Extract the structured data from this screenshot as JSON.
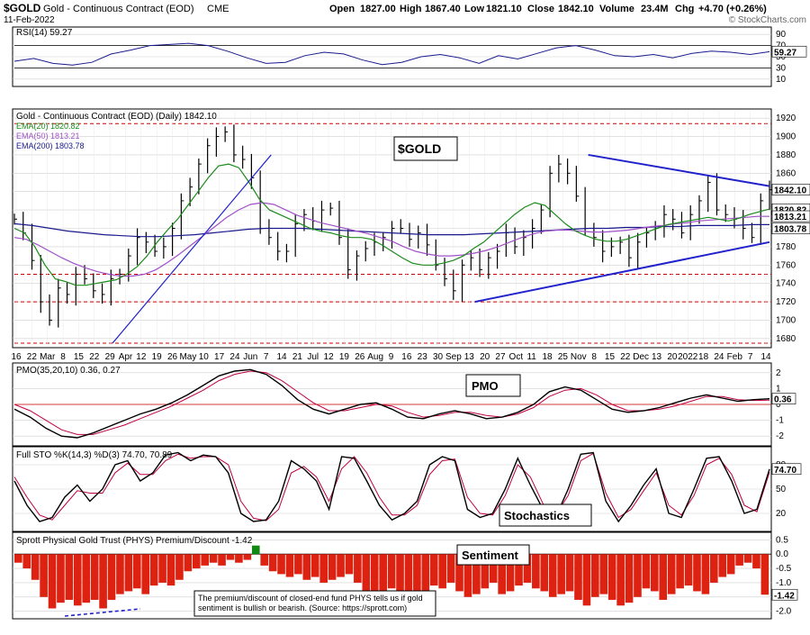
{
  "header": {
    "symbol": "$GOLD",
    "name": "Gold - Continuous Contract (EOD)",
    "exchange": "CME",
    "date": "11-Feb-2022",
    "open_label": "Open",
    "open": "1827.00",
    "high_label": "High",
    "high": "1867.40",
    "low_label": "Low",
    "low": "1821.10",
    "close_label": "Close",
    "close": "1842.10",
    "volume_label": "Volume",
    "volume": "23.4M",
    "chg_label": "Chg",
    "chg": "+4.70 (+0.26%)",
    "watermark": "© StockCharts.com"
  },
  "colors": {
    "price_bar": "#000000",
    "ema20": "#1a8a1a",
    "ema50": "#a050c8",
    "ema200": "#1a1a8c",
    "trendline": "#2222cc",
    "resistance": "#cc0000",
    "pmo_line": "#000000",
    "pmo_signal": "#c00040",
    "sto_k": "#000000",
    "sto_d": "#c00040",
    "sentiment_neg": "#dd2211",
    "sentiment_pos": "#118811",
    "rsi_line": "#1a1a8c"
  },
  "chart_data": [
    {
      "type": "line",
      "panel": "RSI",
      "title": "RSI(14) 59.27",
      "last_value": "59.27",
      "y_ticks": [
        "90",
        "70",
        "50",
        "30",
        "10"
      ],
      "ylim": [
        0,
        100
      ],
      "series": [
        {
          "values": [
            42,
            47,
            38,
            35,
            40,
            55,
            62,
            70,
            72,
            74,
            70,
            60,
            48,
            38,
            40,
            52,
            58,
            55,
            44,
            36,
            40,
            50,
            54,
            48,
            38,
            52,
            46,
            56,
            66,
            70,
            62,
            52,
            50,
            54,
            48,
            56,
            60,
            58,
            54,
            59
          ]
        }
      ]
    },
    {
      "type": "line",
      "panel": "price",
      "title": "Gold - Continuous Contract (EOD) (Daily) 1842.10",
      "annotation": "$GOLD",
      "legend": [
        "EMA(20) 1820.82",
        "EMA(50) 1813.21",
        "EMA(200) 1803.78"
      ],
      "price_labels": [
        "1842.10",
        "1820.82",
        "1813.21",
        "1803.78"
      ],
      "y_ticks": [
        "1920",
        "1900",
        "1880",
        "1860",
        "1840",
        "1820",
        "1800",
        "1780",
        "1760",
        "1740",
        "1720",
        "1700",
        "1680"
      ],
      "ylim": [
        1672,
        1928
      ],
      "x_labels": [
        "16",
        "22",
        "Mar",
        "8",
        "15",
        "22",
        "29",
        "Apr",
        "12",
        "19",
        "26",
        "May",
        "10",
        "17",
        "24",
        "Jun",
        "7",
        "14",
        "21",
        "Jul",
        "12",
        "19",
        "26",
        "Aug",
        "9",
        "16",
        "23",
        "30",
        "Sep",
        "13",
        "20",
        "27",
        "Oct",
        "11",
        "18",
        "25",
        "Nov",
        "8",
        "15",
        "22",
        "Dec",
        "13",
        "20",
        "2022",
        "18",
        "24",
        "Feb",
        "7",
        "14"
      ],
      "close": [
        1810,
        1795,
        1765,
        1720,
        1700,
        1735,
        1728,
        1750,
        1745,
        1732,
        1728,
        1745,
        1750,
        1770,
        1790,
        1785,
        1775,
        1780,
        1800,
        1830,
        1845,
        1870,
        1890,
        1900,
        1905,
        1880,
        1875,
        1855,
        1800,
        1790,
        1775,
        1775,
        1805,
        1815,
        1808,
        1820,
        1822,
        1790,
        1755,
        1770,
        1778,
        1785,
        1790,
        1800,
        1800,
        1788,
        1795,
        1782,
        1760,
        1745,
        1732,
        1760,
        1768,
        1755,
        1768,
        1775,
        1795,
        1780,
        1790,
        1800,
        1820,
        1860,
        1870,
        1860,
        1835,
        1800,
        1790,
        1775,
        1780,
        1785,
        1768,
        1785,
        1795,
        1800,
        1815,
        1810,
        1795,
        1815,
        1830,
        1850,
        1820,
        1815,
        1810,
        1800,
        1790,
        1830,
        1842
      ],
      "ema20_values": [
        1800,
        1795,
        1780,
        1760,
        1745,
        1742,
        1738,
        1738,
        1740,
        1742,
        1744,
        1750,
        1758,
        1770,
        1785,
        1798,
        1810,
        1825,
        1840,
        1855,
        1868,
        1870,
        1866,
        1850,
        1832,
        1820,
        1815,
        1810,
        1805,
        1800,
        1797,
        1795,
        1792,
        1790,
        1790,
        1788,
        1782,
        1775,
        1768,
        1762,
        1760,
        1760,
        1762,
        1765,
        1770,
        1778,
        1785,
        1795,
        1805,
        1815,
        1823,
        1828,
        1825,
        1815,
        1805,
        1797,
        1792,
        1788,
        1786,
        1786,
        1788,
        1792,
        1796,
        1800,
        1804,
        1806,
        1808,
        1810,
        1812,
        1810,
        1808,
        1811,
        1815,
        1818,
        1821
      ],
      "ema50_values": [
        1790,
        1788,
        1782,
        1775,
        1768,
        1762,
        1757,
        1753,
        1750,
        1748,
        1748,
        1750,
        1755,
        1763,
        1772,
        1782,
        1792,
        1802,
        1812,
        1820,
        1826,
        1828,
        1826,
        1820,
        1814,
        1810,
        1806,
        1803,
        1800,
        1797,
        1794,
        1790,
        1786,
        1780,
        1775,
        1772,
        1770,
        1770,
        1771,
        1773,
        1776,
        1780,
        1785,
        1790,
        1794,
        1797,
        1798,
        1798,
        1797,
        1796,
        1796,
        1797,
        1798,
        1800,
        1802,
        1803,
        1805,
        1806,
        1808,
        1809,
        1810,
        1811,
        1812,
        1813,
        1813
      ],
      "ema200_values": [
        1805,
        1803,
        1800,
        1797,
        1795,
        1793,
        1792,
        1791,
        1791,
        1792,
        1793,
        1795,
        1797,
        1799,
        1800,
        1800,
        1800,
        1799,
        1798,
        1797,
        1796,
        1795,
        1794,
        1793,
        1793,
        1793,
        1794,
        1795,
        1796,
        1797,
        1798,
        1799,
        1800,
        1800,
        1801,
        1801,
        1802,
        1802,
        1803,
        1803,
        1803,
        1804,
        1804
      ],
      "resistance_levels": [
        1914,
        1750,
        1720,
        1675
      ],
      "trendlines": [
        {
          "label": "Apr rising",
          "from": [
            "Apr",
            1675
          ],
          "to": [
            "Jun",
            1880
          ]
        },
        {
          "label": "Nov falling",
          "from": [
            "Nov 15",
            1880
          ],
          "to": [
            "Feb 14",
            1846
          ]
        },
        {
          "label": "Oct rising",
          "from": [
            "Oct",
            1720
          ],
          "to": [
            "Feb 14",
            1785
          ]
        }
      ]
    },
    {
      "type": "line",
      "panel": "PMO",
      "title": "PMO(35,20,10) 0.36, 0.27",
      "annotation": "PMO",
      "last_value": "0.36",
      "y_ticks": [
        "2",
        "1",
        "0",
        "-1",
        "-2"
      ],
      "ylim": [
        -2.5,
        2.5
      ],
      "series": [
        {
          "name": "PMO",
          "values": [
            -0.3,
            -0.8,
            -1.5,
            -2.0,
            -2.1,
            -1.8,
            -1.4,
            -1.0,
            -0.6,
            -0.3,
            0.1,
            0.6,
            1.2,
            1.8,
            2.1,
            2.2,
            1.9,
            1.2,
            0.3,
            -0.3,
            -0.6,
            -0.3,
            0.0,
            0.1,
            -0.3,
            -0.8,
            -0.9,
            -0.6,
            -0.4,
            -0.6,
            -0.9,
            -0.8,
            -0.5,
            0.0,
            0.8,
            1.1,
            0.9,
            0.3,
            -0.3,
            -0.5,
            -0.4,
            -0.2,
            0.1,
            0.4,
            0.6,
            0.4,
            0.2,
            0.3,
            0.36
          ]
        },
        {
          "name": "Signal",
          "values": [
            0.0,
            -0.4,
            -1.0,
            -1.6,
            -1.9,
            -1.9,
            -1.6,
            -1.3,
            -0.9,
            -0.5,
            -0.1,
            0.4,
            0.9,
            1.5,
            1.9,
            2.1,
            2.0,
            1.5,
            0.8,
            0.1,
            -0.4,
            -0.4,
            -0.2,
            0.0,
            -0.1,
            -0.5,
            -0.8,
            -0.7,
            -0.5,
            -0.5,
            -0.7,
            -0.8,
            -0.6,
            -0.2,
            0.5,
            0.9,
            1.0,
            0.6,
            0.0,
            -0.4,
            -0.4,
            -0.3,
            -0.1,
            0.2,
            0.5,
            0.5,
            0.3,
            0.25,
            0.27
          ]
        }
      ]
    },
    {
      "type": "line",
      "panel": "Stochastics",
      "title": "Full STO %K(14,3) %D(3) 74.70, 70.89",
      "annotation": "Stochastics",
      "last_value": "74.70",
      "y_ticks": [
        "80",
        "50",
        "20"
      ],
      "ylim": [
        0,
        100
      ],
      "series": [
        {
          "name": "%K",
          "values": [
            60,
            30,
            10,
            15,
            40,
            55,
            35,
            50,
            80,
            85,
            60,
            70,
            92,
            95,
            85,
            92,
            90,
            70,
            20,
            10,
            12,
            35,
            85,
            75,
            60,
            25,
            90,
            88,
            60,
            30,
            12,
            20,
            35,
            80,
            90,
            85,
            25,
            15,
            20,
            50,
            88,
            55,
            25,
            15,
            50,
            93,
            95,
            35,
            10,
            30,
            55,
            75,
            20,
            15,
            50,
            88,
            90,
            60,
            20,
            25,
            74.7
          ]
        },
        {
          "name": "%D",
          "values": [
            65,
            40,
            18,
            12,
            30,
            48,
            45,
            45,
            70,
            82,
            68,
            68,
            85,
            93,
            88,
            90,
            90,
            80,
            35,
            14,
            11,
            25,
            70,
            78,
            65,
            35,
            75,
            90,
            70,
            40,
            18,
            18,
            30,
            68,
            85,
            87,
            40,
            20,
            18,
            42,
            80,
            65,
            32,
            18,
            42,
            85,
            94,
            45,
            15,
            25,
            48,
            70,
            30,
            18,
            42,
            80,
            88,
            68,
            30,
            22,
            70.89
          ]
        }
      ]
    },
    {
      "type": "bar",
      "panel": "Sentiment",
      "title": "Sprott Physical Gold Trust (PHYS) Premium/Discount -1.42",
      "annotation": "Sentiment",
      "last_value": "-1.42",
      "y_ticks": [
        "0.5",
        "0.0",
        "-0.5",
        "-1.0",
        "-1.5",
        "-2.0"
      ],
      "ylim": [
        -2.2,
        0.7
      ],
      "note_lines": [
        "The premium/discount of closed-end fund PHYS tells us if gold",
        "sentiment is bullish or bearish.  (Source: https://sprott.com)"
      ],
      "values": [
        -0.3,
        -0.5,
        -0.9,
        -1.5,
        -1.9,
        -1.7,
        -1.6,
        -1.8,
        -1.7,
        -1.6,
        -1.9,
        -1.6,
        -1.4,
        -1.3,
        -1.2,
        -1.4,
        -1.1,
        -1.0,
        -1.1,
        -0.9,
        -0.6,
        -0.5,
        -0.4,
        -0.3,
        -0.4,
        -0.2,
        -0.3,
        -0.2,
        0.3,
        -0.4,
        -0.6,
        -0.7,
        -0.8,
        -0.7,
        -0.9,
        -0.8,
        -1.0,
        -0.9,
        -0.8,
        -0.7,
        -1.0,
        -1.3,
        -1.5,
        -1.4,
        -1.2,
        -1.4,
        -1.5,
        -1.3,
        -1.3,
        -1.1,
        -1.2,
        -1.0,
        -1.3,
        -1.5,
        -1.4,
        -1.2,
        -1.0,
        -1.4,
        -1.3,
        -1.1,
        -1.0,
        -1.2,
        -1.3,
        -1.5,
        -1.4,
        -1.3,
        -1.6,
        -1.8,
        -1.5,
        -1.4,
        -1.6,
        -1.8,
        -1.7,
        -1.5,
        -1.2,
        -1.3,
        -1.6,
        -1.4,
        -1.2,
        -1.1,
        -1.3,
        -1.4,
        -1.0,
        -0.8,
        -0.7,
        -0.4,
        -0.3,
        -0.5,
        -1.42
      ]
    }
  ]
}
